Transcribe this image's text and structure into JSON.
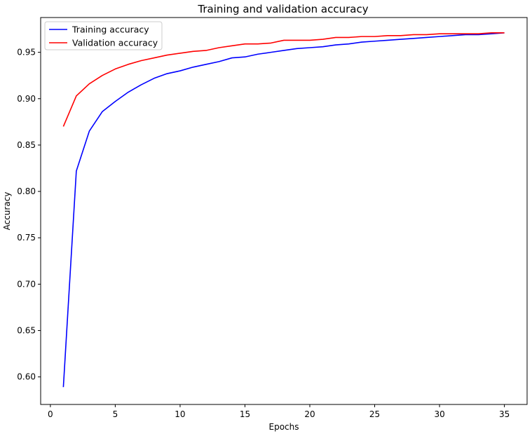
{
  "chart_data": {
    "type": "line",
    "title": "Training and validation accuracy",
    "xlabel": "Epochs",
    "ylabel": "Accuracy",
    "xlim": [
      -0.75,
      36.75
    ],
    "ylim": [
      0.5703,
      0.9875
    ],
    "x_ticks": [
      0,
      5,
      10,
      15,
      20,
      25,
      30,
      35
    ],
    "y_ticks": [
      0.6,
      0.65,
      0.7,
      0.75,
      0.8,
      0.85,
      0.9,
      0.95
    ],
    "y_tick_labels": [
      "0.60",
      "0.65",
      "0.70",
      "0.75",
      "0.80",
      "0.85",
      "0.90",
      "0.95"
    ],
    "grid": false,
    "legend_position": "top-left",
    "x": [
      1,
      2,
      3,
      4,
      5,
      6,
      7,
      8,
      9,
      10,
      11,
      12,
      13,
      14,
      15,
      16,
      17,
      18,
      19,
      20,
      21,
      22,
      23,
      24,
      25,
      26,
      27,
      28,
      29,
      30,
      31,
      32,
      33,
      34,
      35
    ],
    "series": [
      {
        "name": "Training accuracy",
        "color": "#0000ff",
        "values": [
          0.589,
          0.822,
          0.865,
          0.886,
          0.897,
          0.907,
          0.915,
          0.922,
          0.927,
          0.93,
          0.934,
          0.937,
          0.94,
          0.944,
          0.945,
          0.948,
          0.95,
          0.952,
          0.954,
          0.955,
          0.956,
          0.958,
          0.959,
          0.961,
          0.962,
          0.963,
          0.964,
          0.965,
          0.966,
          0.967,
          0.968,
          0.969,
          0.969,
          0.97,
          0.971
        ]
      },
      {
        "name": "Validation accuracy",
        "color": "#ff0000",
        "values": [
          0.87,
          0.903,
          0.916,
          0.925,
          0.932,
          0.937,
          0.941,
          0.944,
          0.947,
          0.949,
          0.951,
          0.952,
          0.955,
          0.957,
          0.959,
          0.959,
          0.96,
          0.963,
          0.963,
          0.963,
          0.964,
          0.966,
          0.966,
          0.967,
          0.967,
          0.968,
          0.968,
          0.969,
          0.969,
          0.97,
          0.97,
          0.97,
          0.97,
          0.971,
          0.971
        ]
      }
    ]
  }
}
